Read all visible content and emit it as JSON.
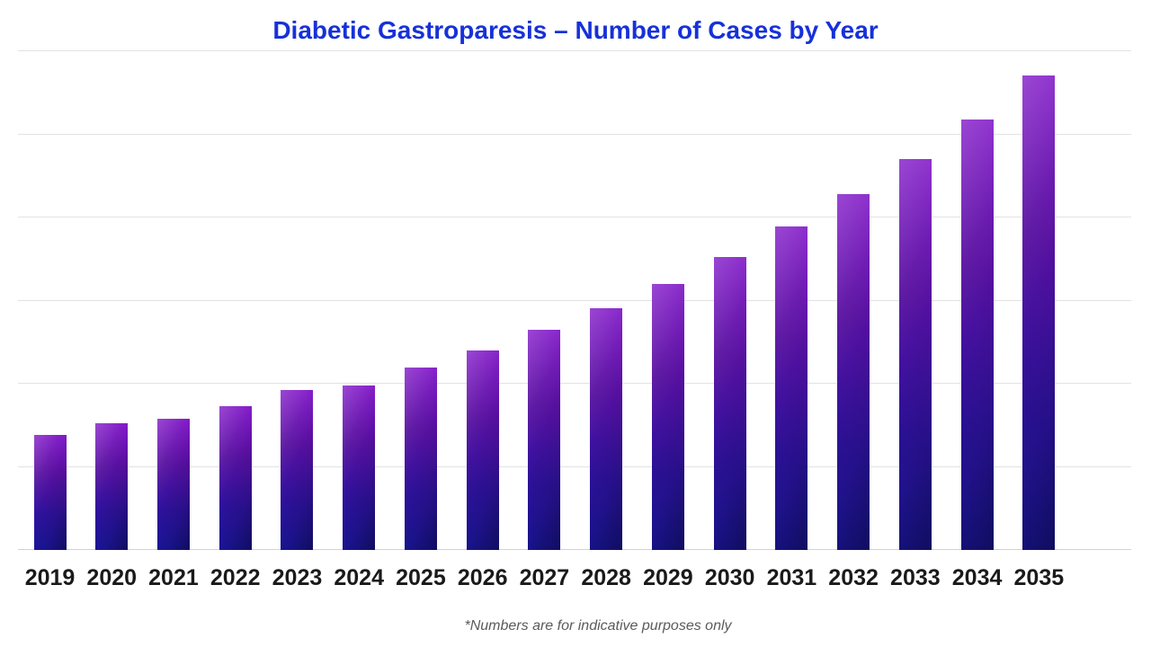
{
  "title": {
    "text": "Diabetic Gastroparesis – Number of Cases by Year",
    "color": "#1731d9"
  },
  "footnote": {
    "text": "*Numbers are for indicative purposes only",
    "color": "#5a5a5a"
  },
  "colors": {
    "background": "#ffffff",
    "gridline": "#e2e2e2",
    "axis_line": "#d2d2d2",
    "tick_label": "#1a1a1a",
    "bar_gradient_top": "#7e13c6",
    "bar_gradient_upper_mid": "#57109f",
    "bar_gradient_lower_mid": "#2e129e",
    "bar_gradient_bottom": "#1c17a4"
  },
  "chart_data": {
    "type": "bar",
    "title": "Diabetic Gastroparesis – Number of Cases by Year",
    "categories": [
      "2019",
      "2020",
      "2021",
      "2022",
      "2023",
      "2024",
      "2025",
      "2026",
      "2027",
      "2028",
      "2029",
      "2030",
      "2031",
      "2032",
      "2033",
      "2034",
      "2035"
    ],
    "values": [
      1.38,
      1.52,
      1.58,
      1.73,
      1.92,
      1.98,
      2.19,
      2.4,
      2.65,
      2.91,
      3.2,
      3.52,
      3.89,
      4.28,
      4.7,
      5.18,
      5.71
    ],
    "value_units": "relative units estimated from unlabeled gridlines (1 unit = 1 gridline interval)",
    "xlabel": "",
    "ylabel": "",
    "ylim": [
      0,
      6
    ],
    "grid": "horizontal only, 7 lines including baseline, no y tick labels",
    "legend": "none",
    "annotation": "*Numbers are for indicative purposes only"
  }
}
